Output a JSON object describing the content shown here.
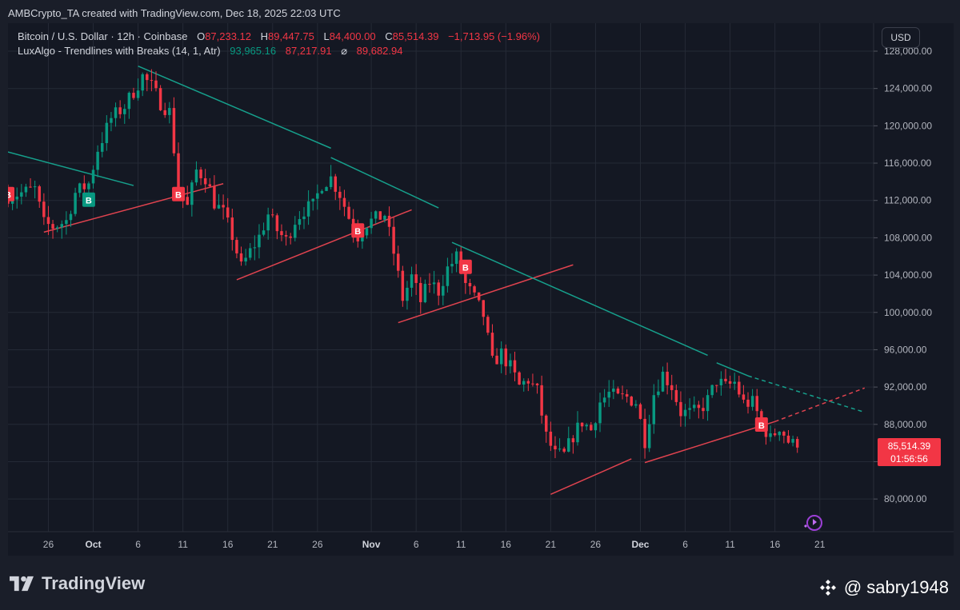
{
  "header": {
    "text": "AMBCrypto_TA created with TradingView.com, Dec 18, 2025 22:03 UTC"
  },
  "legend": {
    "line1": {
      "symbol": "Bitcoin / U.S. Dollar · 12h · Coinbase",
      "open_label": "O",
      "open": "87,233.12",
      "high_label": "H",
      "high": "89,447.75",
      "low_label": "L",
      "low": "84,400.00",
      "close_label": "C",
      "close": "85,514.39",
      "change": "−1,713.95 (−1.96%)"
    },
    "line2": {
      "indicator": "LuxAlgo - Trendlines with Breaks (14, 1, Atr)",
      "v1": "93,965.16",
      "v2": "87,217.91",
      "sym": "⌀",
      "v3": "89,682.94"
    }
  },
  "currency_button": "USD",
  "last_price": {
    "price": "85,514.39",
    "countdown": "01:56:56"
  },
  "brand": {
    "name": "TradingView"
  },
  "watermark": {
    "text": "@ sabry1948"
  },
  "colors": {
    "up": "#089981",
    "down": "#f23645",
    "trend_down": "#16a08c",
    "trend_up": "#e0434f",
    "grid": "#252a36",
    "text": "#b2b5be"
  },
  "chart_data": {
    "type": "candlestick",
    "ylim": [
      76500,
      131000
    ],
    "y_ticks": [
      80000,
      84000,
      88000,
      92000,
      96000,
      100000,
      104000,
      108000,
      112000,
      116000,
      120000,
      124000,
      128000
    ],
    "y_tick_labels": [
      "80,000.00",
      "84,000.00",
      "88,000.00",
      "92,000.00",
      "96,000.00",
      "100,000.00",
      "104,000.00",
      "108,000.00",
      "112,000.00",
      "116,000.00",
      "120,000.00",
      "124,000.00",
      "128,000.00"
    ],
    "x_ticks": [
      {
        "label": "26",
        "date": "2025-09-26",
        "bold": false
      },
      {
        "label": "Oct",
        "date": "2025-10-01",
        "bold": true
      },
      {
        "label": "6",
        "date": "2025-10-06",
        "bold": false
      },
      {
        "label": "11",
        "date": "2025-10-11",
        "bold": false
      },
      {
        "label": "16",
        "date": "2025-10-16",
        "bold": false
      },
      {
        "label": "21",
        "date": "2025-10-21",
        "bold": false
      },
      {
        "label": "26",
        "date": "2025-10-26",
        "bold": false
      },
      {
        "label": "Nov",
        "date": "2025-11-01",
        "bold": true
      },
      {
        "label": "6",
        "date": "2025-11-06",
        "bold": false
      },
      {
        "label": "11",
        "date": "2025-11-11",
        "bold": false
      },
      {
        "label": "16",
        "date": "2025-11-16",
        "bold": false
      },
      {
        "label": "21",
        "date": "2025-11-21",
        "bold": false
      },
      {
        "label": "26",
        "date": "2025-11-26",
        "bold": false
      },
      {
        "label": "Dec",
        "date": "2025-12-01",
        "bold": true
      },
      {
        "label": "6",
        "date": "2025-12-06",
        "bold": false
      },
      {
        "label": "11",
        "date": "2025-12-11",
        "bold": false
      },
      {
        "label": "16",
        "date": "2025-12-16",
        "bold": false
      },
      {
        "label": "21",
        "date": "2025-12-21",
        "bold": false
      }
    ],
    "xlim": [
      "2025-09-21T12:00",
      "2025-12-27T00:00"
    ],
    "close_path": [
      [
        "2025-09-21T12:00",
        112500
      ],
      [
        "2025-09-23T00:00",
        112800
      ],
      [
        "2025-09-24T12:00",
        113200
      ],
      [
        "2025-09-25T12:00",
        109500
      ],
      [
        "2025-09-26T12:00",
        109200
      ],
      [
        "2025-09-28T00:00",
        109800
      ],
      [
        "2025-09-29T00:00",
        112800
      ],
      [
        "2025-09-30T12:00",
        113800
      ],
      [
        "2025-10-01T12:00",
        117500
      ],
      [
        "2025-10-03T00:00",
        120800
      ],
      [
        "2025-10-04T12:00",
        122100
      ],
      [
        "2025-10-06T00:00",
        124500
      ],
      [
        "2025-10-06T12:00",
        125300
      ],
      [
        "2025-10-07T12:00",
        124200
      ],
      [
        "2025-10-08T12:00",
        122500
      ],
      [
        "2025-10-09T12:00",
        121500
      ],
      [
        "2025-10-10T12:00",
        113500
      ],
      [
        "2025-10-11T12:00",
        111300
      ],
      [
        "2025-10-12T12:00",
        115200
      ],
      [
        "2025-10-13T12:00",
        114500
      ],
      [
        "2025-10-14T12:00",
        111800
      ],
      [
        "2025-10-15T12:00",
        110600
      ],
      [
        "2025-10-16T12:00",
        108200
      ],
      [
        "2025-10-17T12:00",
        104800
      ],
      [
        "2025-10-18T12:00",
        106500
      ],
      [
        "2025-10-19T12:00",
        108100
      ],
      [
        "2025-10-20T12:00",
        110500
      ],
      [
        "2025-10-21T12:00",
        108800
      ],
      [
        "2025-10-22T12:00",
        107700
      ],
      [
        "2025-10-23T12:00",
        109900
      ],
      [
        "2025-10-24T12:00",
        111000
      ],
      [
        "2025-10-25T12:00",
        111400
      ],
      [
        "2025-10-26T12:00",
        113800
      ],
      [
        "2025-10-27T12:00",
        114400
      ],
      [
        "2025-10-28T12:00",
        112700
      ],
      [
        "2025-10-29T12:00",
        110200
      ],
      [
        "2025-10-30T12:00",
        108200
      ],
      [
        "2025-10-31T12:00",
        109600
      ],
      [
        "2025-11-01T12:00",
        110000
      ],
      [
        "2025-11-02T12:00",
        110500
      ],
      [
        "2025-11-03T12:00",
        106400
      ],
      [
        "2025-11-04T12:00",
        101500
      ],
      [
        "2025-11-05T12:00",
        103800
      ],
      [
        "2025-11-06T12:00",
        101200
      ],
      [
        "2025-11-07T12:00",
        103300
      ],
      [
        "2025-11-08T12:00",
        102300
      ],
      [
        "2025-11-09T12:00",
        104700
      ],
      [
        "2025-11-10T12:00",
        105900
      ],
      [
        "2025-11-11T12:00",
        103000
      ],
      [
        "2025-11-12T12:00",
        101500
      ],
      [
        "2025-11-13T12:00",
        99700
      ],
      [
        "2025-11-14T12:00",
        94600
      ],
      [
        "2025-11-15T12:00",
        95600
      ],
      [
        "2025-11-16T12:00",
        94100
      ],
      [
        "2025-11-17T12:00",
        92100
      ],
      [
        "2025-11-18T12:00",
        92800
      ],
      [
        "2025-11-19T12:00",
        91500
      ],
      [
        "2025-11-20T12:00",
        86700
      ],
      [
        "2025-11-21T12:00",
        84700
      ],
      [
        "2025-11-22T12:00",
        84700
      ],
      [
        "2025-11-23T12:00",
        86800
      ],
      [
        "2025-11-24T12:00",
        88300
      ],
      [
        "2025-11-25T12:00",
        87400
      ],
      [
        "2025-11-26T12:00",
        90400
      ],
      [
        "2025-11-27T12:00",
        91300
      ],
      [
        "2025-11-28T12:00",
        90800
      ],
      [
        "2025-11-29T12:00",
        90900
      ],
      [
        "2025-11-30T12:00",
        90400
      ],
      [
        "2025-12-01T12:00",
        86300
      ],
      [
        "2025-12-02T12:00",
        91300
      ],
      [
        "2025-12-03T12:00",
        93400
      ],
      [
        "2025-12-04T12:00",
        92100
      ],
      [
        "2025-12-05T12:00",
        89300
      ],
      [
        "2025-12-06T12:00",
        89200
      ],
      [
        "2025-12-07T12:00",
        89400
      ],
      [
        "2025-12-08T12:00",
        90600
      ],
      [
        "2025-12-09T12:00",
        92700
      ],
      [
        "2025-12-10T12:00",
        92000
      ],
      [
        "2025-12-11T12:00",
        92500
      ],
      [
        "2025-12-12T12:00",
        90300
      ],
      [
        "2025-12-13T12:00",
        90300
      ],
      [
        "2025-12-14T12:00",
        88200
      ],
      [
        "2025-12-15T12:00",
        86400
      ],
      [
        "2025-12-16T12:00",
        87800
      ],
      [
        "2025-12-17T12:00",
        86200
      ],
      [
        "2025-12-18T12:00",
        85514
      ]
    ],
    "trendlines": [
      {
        "kind": "down",
        "points": [
          [
            "2025-09-21T12:00",
            117200
          ],
          [
            "2025-10-05T12:00",
            113600
          ]
        ]
      },
      {
        "kind": "up",
        "points": [
          [
            "2025-09-25T12:00",
            108600
          ],
          [
            "2025-10-15T12:00",
            113800
          ]
        ]
      },
      {
        "kind": "down",
        "points": [
          [
            "2025-10-06T00:00",
            126400
          ],
          [
            "2025-10-27T12:00",
            117600
          ]
        ]
      },
      {
        "kind": "up",
        "points": [
          [
            "2025-10-17T00:00",
            103500
          ],
          [
            "2025-11-05T12:00",
            111000
          ]
        ]
      },
      {
        "kind": "down",
        "points": [
          [
            "2025-10-27T12:00",
            116600
          ],
          [
            "2025-11-08T12:00",
            111200
          ]
        ]
      },
      {
        "kind": "up",
        "points": [
          [
            "2025-11-04T00:00",
            98900
          ],
          [
            "2025-11-23T12:00",
            105100
          ]
        ]
      },
      {
        "kind": "down",
        "points": [
          [
            "2025-11-10T00:00",
            107500
          ],
          [
            "2025-12-08T12:00",
            95400
          ]
        ]
      },
      {
        "kind": "up",
        "points": [
          [
            "2025-11-21T00:00",
            80500
          ],
          [
            "2025-11-30T00:00",
            84300
          ]
        ]
      },
      {
        "kind": "up",
        "points": [
          [
            "2025-12-01T12:00",
            83900
          ],
          [
            "2025-12-16T00:00",
            88300
          ]
        ]
      },
      {
        "kind": "down",
        "points": [
          [
            "2025-12-09T12:00",
            94600
          ],
          [
            "2025-12-13T00:00",
            93200
          ]
        ]
      },
      {
        "kind": "down",
        "points": [
          [
            "2025-12-13T00:00",
            93200
          ],
          [
            "2025-12-26T00:00",
            89300
          ]
        ],
        "dashed": true
      },
      {
        "kind": "up",
        "points": [
          [
            "2025-12-16T00:00",
            88300
          ],
          [
            "2025-12-26T00:00",
            91900
          ]
        ],
        "dashed": true
      }
    ],
    "break_markers": [
      {
        "label": "B",
        "kind": "down",
        "t": "2025-09-21T12:00",
        "price": 112600
      },
      {
        "label": "B",
        "kind": "up",
        "t": "2025-09-30T12:00",
        "price": 112000
      },
      {
        "label": "B",
        "kind": "down",
        "t": "2025-10-10T12:00",
        "price": 112600
      },
      {
        "label": "B",
        "kind": "down",
        "t": "2025-10-30T12:00",
        "price": 108700
      },
      {
        "label": "B",
        "kind": "down",
        "t": "2025-11-11T12:00",
        "price": 104800
      },
      {
        "label": "B",
        "kind": "down",
        "t": "2025-12-14T12:00",
        "price": 87900
      }
    ]
  }
}
